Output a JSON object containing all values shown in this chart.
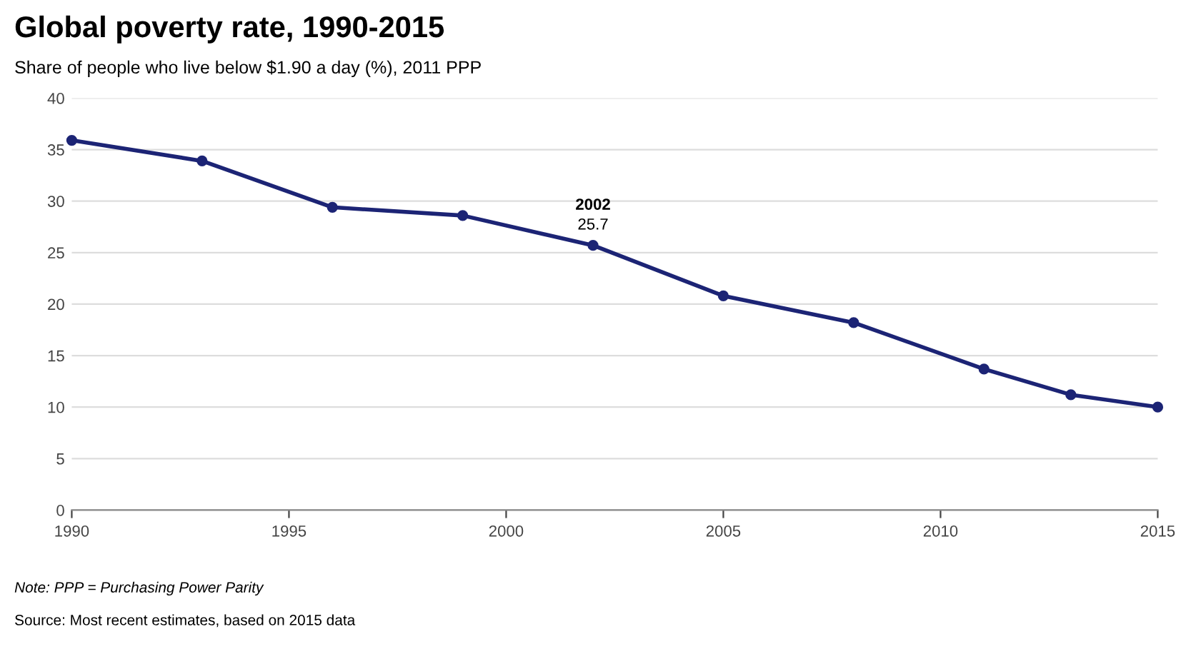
{
  "chart_data": {
    "type": "line",
    "title": "Global poverty rate, 1990-2015",
    "subtitle": "Share of people who live below $1.90 a day (%), 2011 PPP",
    "x": [
      1990,
      1993,
      1996,
      1999,
      2002,
      2005,
      2008,
      2011,
      2013,
      2015
    ],
    "series": [
      {
        "color": "#1c2475",
        "values": [
          35.9,
          33.9,
          29.4,
          28.6,
          25.7,
          20.8,
          18.2,
          13.7,
          11.2,
          10.0
        ]
      }
    ],
    "xlim": [
      1990,
      2015
    ],
    "xticks": [
      1990,
      1995,
      2000,
      2005,
      2010,
      2015
    ],
    "ylim": [
      0,
      40
    ],
    "yticks": [
      0,
      5,
      10,
      15,
      20,
      25,
      30,
      35,
      40
    ],
    "grid": "y",
    "marker": "circle",
    "line_style": "solid",
    "annotations": [
      {
        "text": "2002",
        "x": 2002,
        "y": 25.7
      },
      {
        "text": "25.7",
        "x": 2002,
        "y": 25.7
      },
      "Note: PPP = Purchasing Power Parity",
      "Source: Most recent estimates, based on 2015 data"
    ]
  }
}
